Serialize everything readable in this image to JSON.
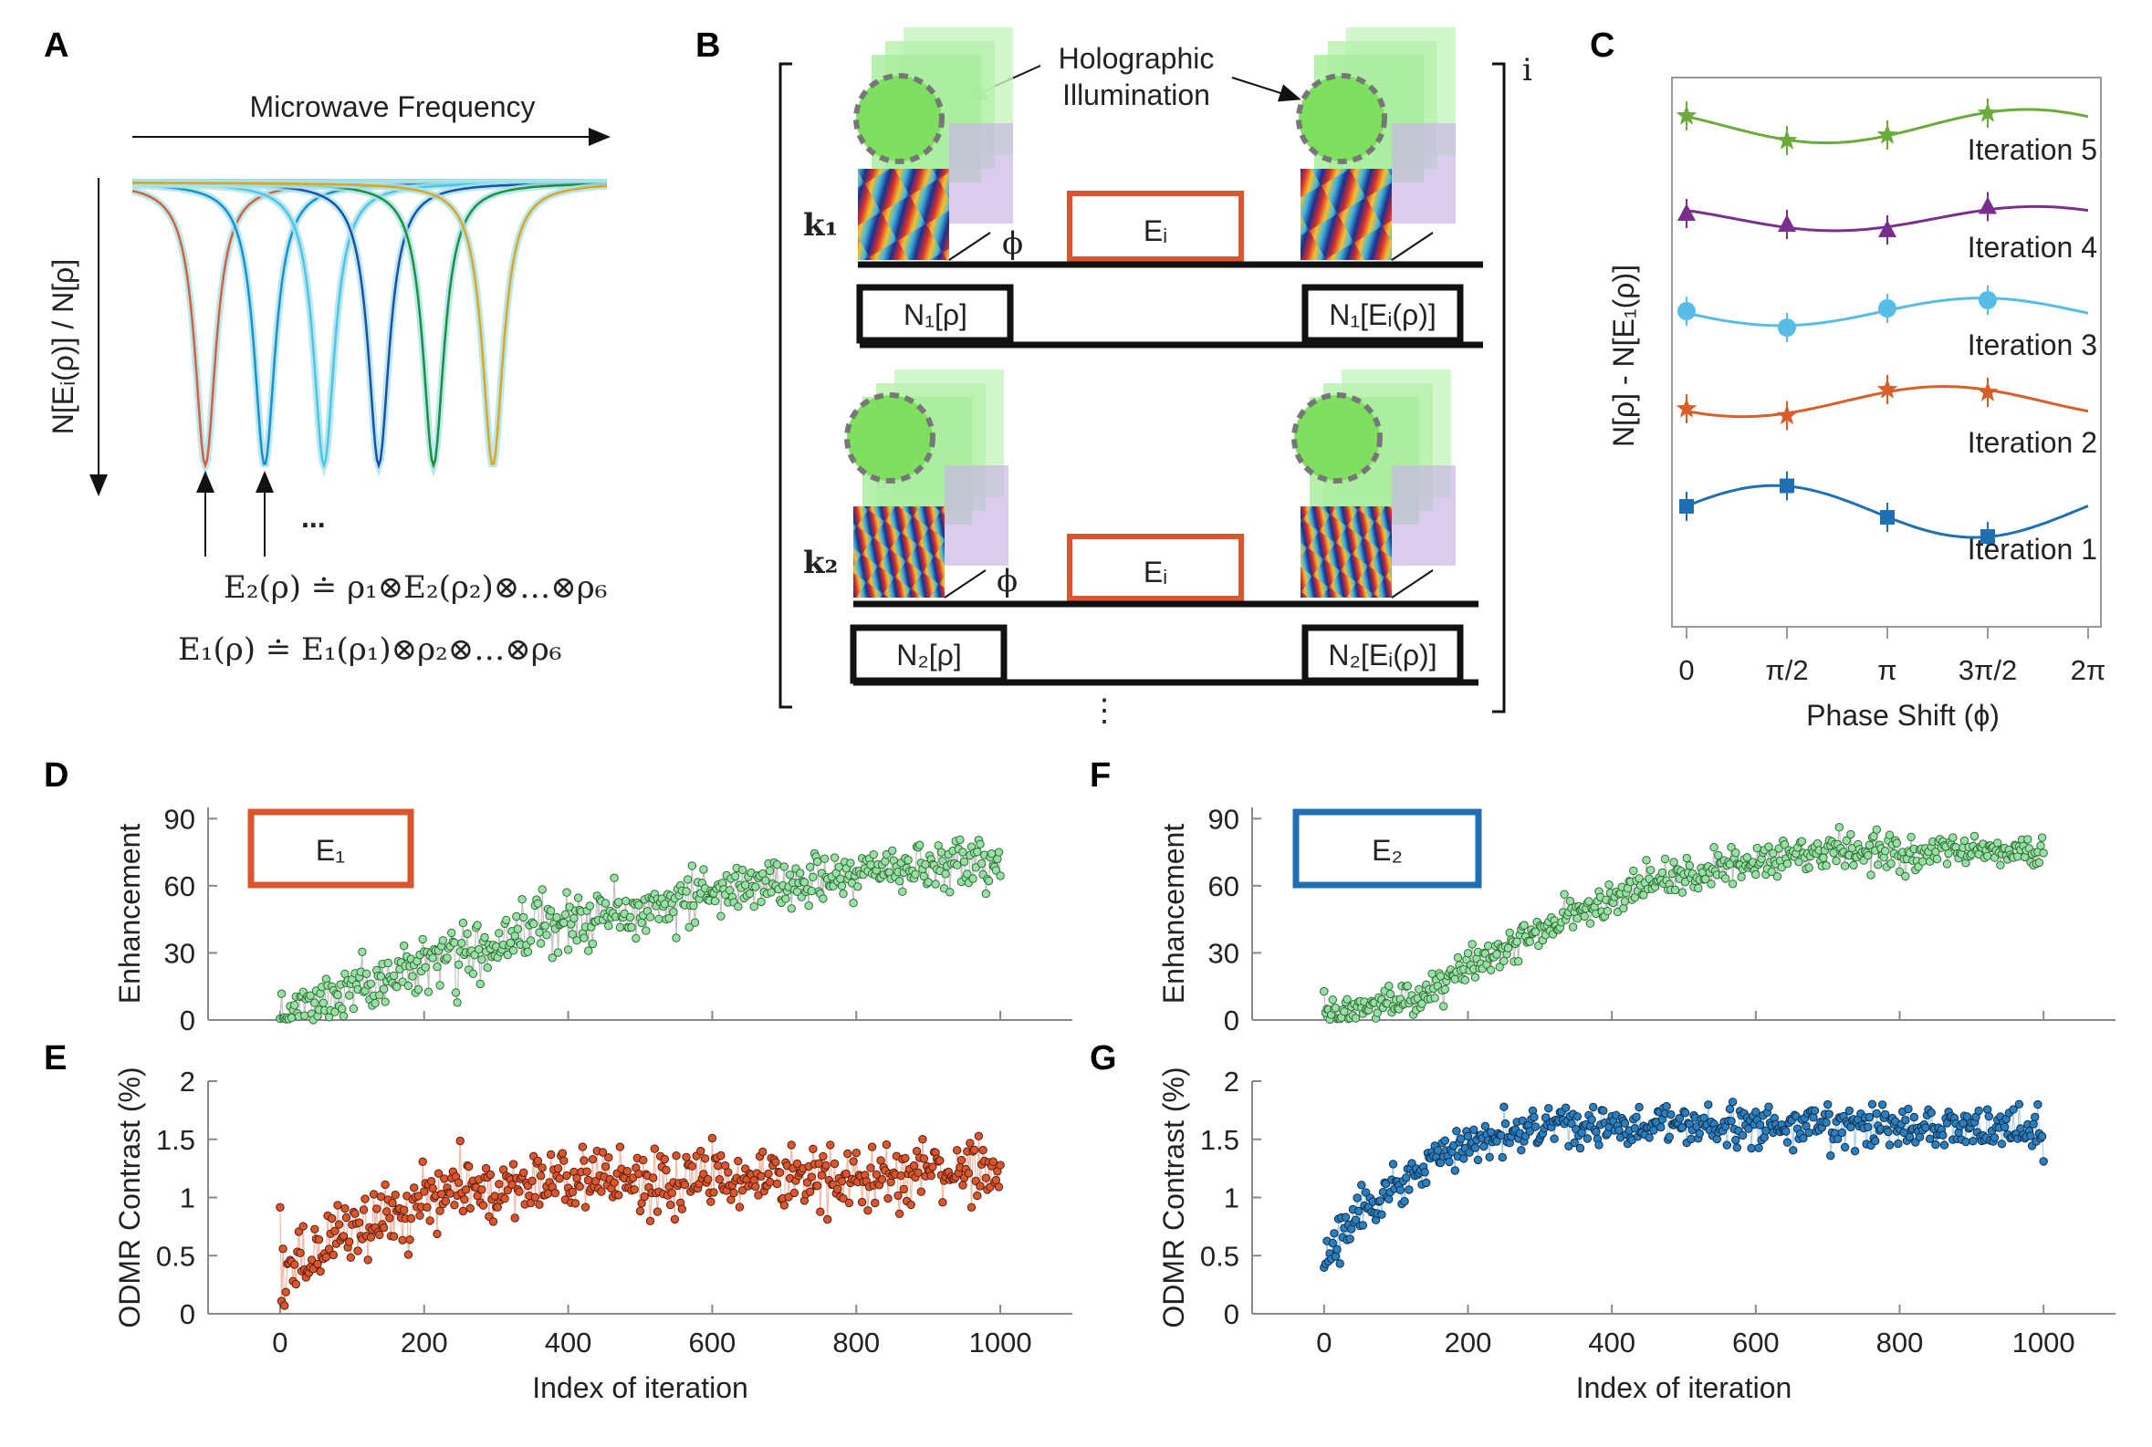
{
  "panel_labels": {
    "a": "A",
    "b": "B",
    "c": "C",
    "d": "D",
    "e": "E",
    "f": "F",
    "g": "G"
  },
  "panel_a": {
    "xlabel": "Microwave Frequency",
    "ylabel": "N[Eᵢ(ρ)] / N[ρ]",
    "ellipsis": "...",
    "eq2": "E₂(ρ) ≐ ρ₁⊗E₂(ρ₂)⊗…⊗ρ₆",
    "eq1": "E₁(ρ) ≐ E₁(ρ₁)⊗ρ₂⊗…⊗ρ₆",
    "line_colors": [
      "#d95f3b",
      "#1b8fd0",
      "#4fc3e8",
      "#1d4fa8",
      "#1f8f3a",
      "#e0a41f"
    ]
  },
  "panel_b": {
    "holo_label_1": "Holographic",
    "holo_label_2": "Illumination",
    "k1": "k₁",
    "k2": "k₂",
    "phi": "ϕ",
    "ei": "Eᵢ",
    "n1_rho": "N₁[ρ]",
    "n1_ei": "N₁[Eᵢ(ρ)]",
    "n2_rho": "N₂[ρ]",
    "n2_ei": "N₂[Eᵢ(ρ)]",
    "bracket_index": "i",
    "vdots": "⋮"
  },
  "panel_c_labels": {
    "ylabel": "N[ρ] - N[E₁(ρ)]",
    "xlabel": "Phase Shift (ϕ)"
  },
  "panel_d_label": "E₁",
  "panel_f_label": "E₂",
  "chart_data": [
    {
      "id": "C",
      "type": "line",
      "title": "",
      "xlabel": "Phase Shift (ϕ)",
      "ylabel": "N[ρ] - N[E₁(ρ)]",
      "x": [
        0,
        1.5708,
        3.1416,
        4.7124
      ],
      "xlim": [
        0,
        6.2832
      ],
      "xticks": [
        "0",
        "π/2",
        "π",
        "3π/2",
        "2π"
      ],
      "series": [
        {
          "name": "Iteration 1",
          "color": "#1f6fb4",
          "marker": "square",
          "values": [
            0.0,
            0.15,
            -0.08,
            -0.22
          ],
          "offset": 0
        },
        {
          "name": "Iteration 2",
          "color": "#d95f2a",
          "marker": "star",
          "values": [
            0.0,
            -0.05,
            0.14,
            0.12
          ],
          "offset": 1
        },
        {
          "name": "Iteration 3",
          "color": "#56bde8",
          "marker": "circle",
          "values": [
            0.0,
            -0.12,
            0.02,
            0.08
          ],
          "offset": 2
        },
        {
          "name": "Iteration 4",
          "color": "#7a2e8e",
          "marker": "triangle",
          "values": [
            0.0,
            -0.08,
            -0.12,
            0.05
          ],
          "offset": 3
        },
        {
          "name": "Iteration 5",
          "color": "#6aab3c",
          "marker": "star",
          "values": [
            0.0,
            -0.18,
            -0.14,
            0.02
          ],
          "offset": 4
        }
      ]
    },
    {
      "id": "D",
      "type": "scatter",
      "xlabel": "",
      "ylabel": "Enhancement",
      "x_range": [
        0,
        1000
      ],
      "xlim": [
        -100,
        1100
      ],
      "ylim": [
        0,
        95
      ],
      "yticks": [
        0,
        30,
        60,
        90
      ],
      "trend": [
        [
          0,
          2
        ],
        [
          100,
          12
        ],
        [
          200,
          27
        ],
        [
          300,
          35
        ],
        [
          400,
          44
        ],
        [
          500,
          50
        ],
        [
          600,
          57
        ],
        [
          700,
          62
        ],
        [
          800,
          66
        ],
        [
          900,
          68
        ],
        [
          1000,
          72
        ]
      ],
      "noise": 6,
      "color": "#98e0a6"
    },
    {
      "id": "E",
      "type": "scatter",
      "xlabel": "Index of iteration",
      "ylabel": "ODMR Contrast (%)",
      "xlim": [
        -100,
        1100
      ],
      "ylim": [
        0,
        2
      ],
      "yticks": [
        0,
        0.5,
        1,
        1.5,
        2
      ],
      "ytick_labels": [
        "0",
        "0.5",
        "1",
        "1.5",
        "2"
      ],
      "xticks": [
        0,
        200,
        400,
        600,
        800,
        1000
      ],
      "trend": [
        [
          0,
          0.3
        ],
        [
          50,
          0.5
        ],
        [
          100,
          0.75
        ],
        [
          200,
          1.0
        ],
        [
          300,
          1.1
        ],
        [
          400,
          1.15
        ],
        [
          600,
          1.15
        ],
        [
          800,
          1.2
        ],
        [
          1000,
          1.3
        ]
      ],
      "noise": 0.15,
      "color": "#d9562f"
    },
    {
      "id": "F",
      "type": "scatter",
      "xlabel": "",
      "ylabel": "Enhancement",
      "xlim": [
        -100,
        1100
      ],
      "ylim": [
        0,
        95
      ],
      "yticks": [
        0,
        30,
        60,
        90
      ],
      "trend": [
        [
          0,
          2
        ],
        [
          100,
          8
        ],
        [
          150,
          12
        ],
        [
          200,
          25
        ],
        [
          300,
          40
        ],
        [
          400,
          55
        ],
        [
          500,
          65
        ],
        [
          600,
          72
        ],
        [
          700,
          74
        ],
        [
          800,
          76
        ],
        [
          900,
          76
        ],
        [
          1000,
          75
        ]
      ],
      "noise": 4,
      "color": "#98e0a6"
    },
    {
      "id": "G",
      "type": "scatter",
      "xlabel": "Index of iteration",
      "ylabel": "ODMR Contrast (%)",
      "xlim": [
        -100,
        1100
      ],
      "ylim": [
        0,
        2
      ],
      "yticks": [
        0,
        0.5,
        1,
        1.5,
        2
      ],
      "ytick_labels": [
        "0",
        "0.5",
        "1",
        "1.5",
        "2"
      ],
      "xticks": [
        0,
        200,
        400,
        600,
        800,
        1000
      ],
      "trend": [
        [
          0,
          0.5
        ],
        [
          50,
          0.9
        ],
        [
          100,
          1.05
        ],
        [
          150,
          1.3
        ],
        [
          200,
          1.45
        ],
        [
          300,
          1.6
        ],
        [
          500,
          1.62
        ],
        [
          700,
          1.62
        ],
        [
          1000,
          1.58
        ]
      ],
      "noise": 0.1,
      "color": "#2b7fbf"
    }
  ]
}
